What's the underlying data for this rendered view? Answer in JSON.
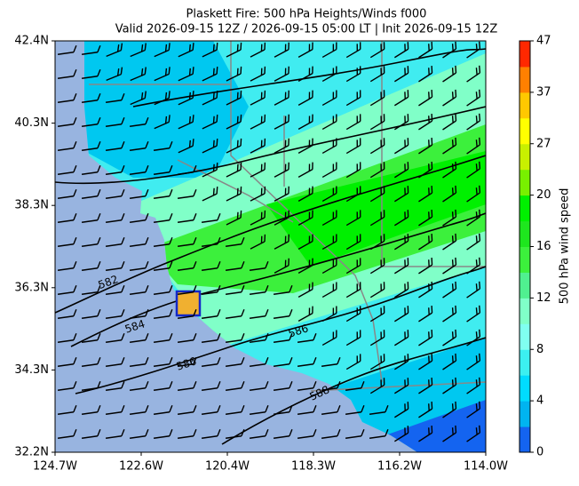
{
  "header": {
    "title_line1": "Plaskett Fire: 500 hPa Heights/Winds f000",
    "title_line2": "Valid 2026-09-15 12Z / 2026-09-15 05:00 LT | Init 2026-09-15 12Z"
  },
  "map": {
    "y_labels": [
      "42.4N",
      "40.3N",
      "38.3N",
      "36.3N",
      "34.3N",
      "32.2N"
    ],
    "x_labels": [
      "124.7W",
      "122.6W",
      "120.4W",
      "118.3W",
      "116.2W",
      "114.0W"
    ],
    "contour_labels": [
      "582",
      "584",
      "586",
      "586",
      "588"
    ]
  },
  "colorbar": {
    "label": "500 hPa wind speed",
    "ticks": [
      0,
      4,
      8,
      12,
      16,
      20,
      27,
      37,
      47
    ],
    "colors": [
      "#1464f0",
      "#00b4f0",
      "#00dcff",
      "#3cf0f0",
      "#80fff0",
      "#80ffc8",
      "#50f090",
      "#3cf03c",
      "#1ee61e",
      "#00f000",
      "#78f000",
      "#c8f000",
      "#ffff00",
      "#ffc800",
      "#ff8000",
      "#ff2800"
    ]
  }
}
